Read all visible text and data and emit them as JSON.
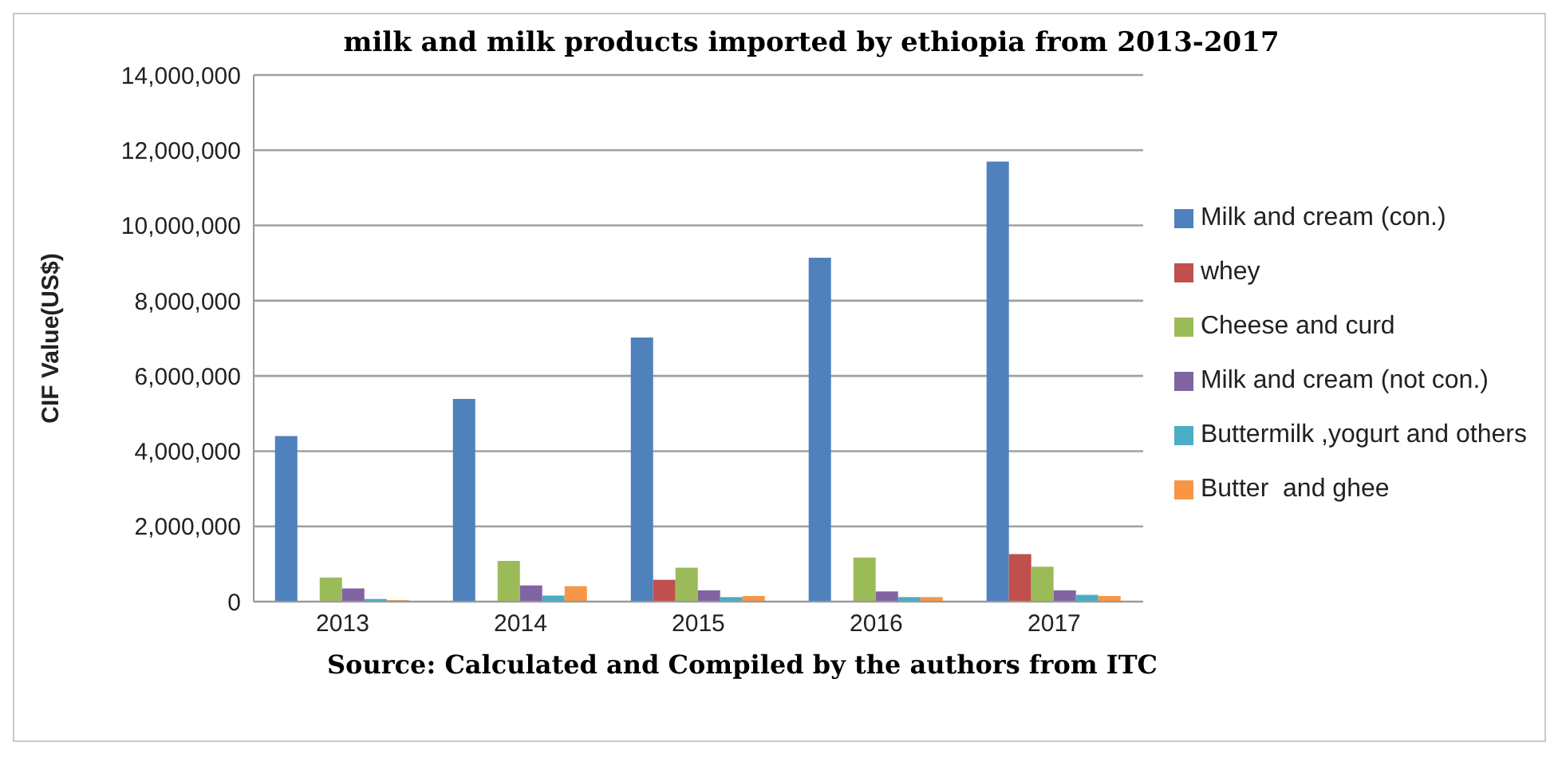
{
  "chart_data": {
    "type": "bar",
    "title": "milk and milk products imported by ethiopia from 2013-2017",
    "ylabel": "CIF Value(US$)",
    "categories": [
      "2013",
      "2014",
      "2015",
      "2016",
      "2017"
    ],
    "series": [
      {
        "name": "Milk and cream (con.)",
        "color": "#4f81bd",
        "values": [
          4400000,
          5390000,
          7020000,
          9140000,
          11700000
        ]
      },
      {
        "name": "whey",
        "color": "#c0504d",
        "values": [
          0,
          0,
          580000,
          0,
          1260000
        ]
      },
      {
        "name": "Cheese and curd",
        "color": "#9bbb59",
        "values": [
          640000,
          1080000,
          900000,
          1170000,
          930000
        ]
      },
      {
        "name": "Milk and cream (not con.)",
        "color": "#8064a2",
        "values": [
          350000,
          430000,
          300000,
          270000,
          300000
        ]
      },
      {
        "name": "Buttermilk ,yogurt and others",
        "color": "#4bacc6",
        "values": [
          70000,
          160000,
          120000,
          120000,
          180000
        ]
      },
      {
        "name": "Butter  and ghee",
        "color": "#f79646",
        "values": [
          40000,
          410000,
          150000,
          120000,
          150000
        ]
      }
    ],
    "ylim": [
      0,
      14000000
    ],
    "yticks": [
      {
        "value": 0,
        "label": "0"
      },
      {
        "value": 2000000,
        "label": "2,000,000"
      },
      {
        "value": 4000000,
        "label": "4,000,000"
      },
      {
        "value": 6000000,
        "label": "6,000,000"
      },
      {
        "value": 8000000,
        "label": "8,000,000"
      },
      {
        "value": 10000000,
        "label": "10,000,000"
      },
      {
        "value": 12000000,
        "label": "12,000,000"
      },
      {
        "value": 14000000,
        "label": "14,000,000"
      }
    ],
    "grid": "y",
    "legend": "right",
    "annotations": [
      "Source: Calculated and Compiled by the authors from ITC"
    ]
  }
}
